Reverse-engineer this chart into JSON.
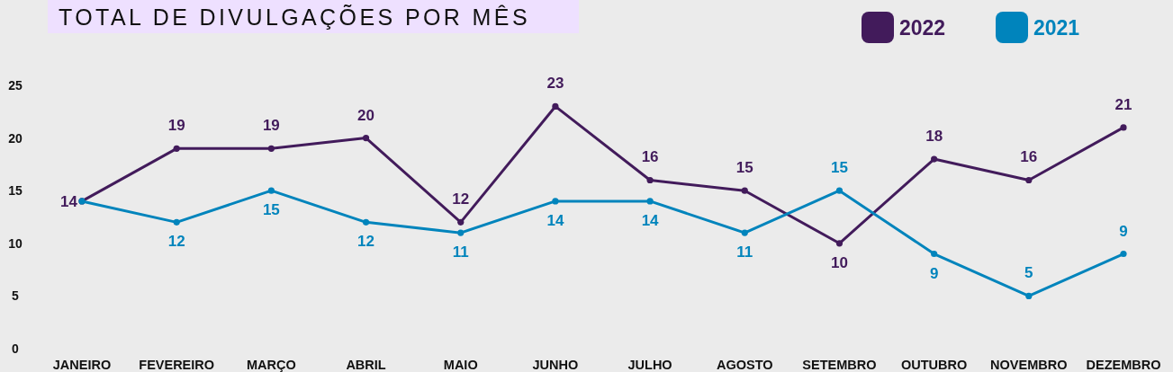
{
  "chart_data": {
    "type": "line",
    "title": "TOTAL DE DIVULGAÇÕES POR MÊS",
    "categories": [
      "JANEIRO",
      "FEVEREIRO",
      "MARÇO",
      "ABRIL",
      "MAIO",
      "JUNHO",
      "JULHO",
      "AGOSTO",
      "SETEMBRO",
      "OUTUBRO",
      "NOVEMBRO",
      "DEZEMBRO"
    ],
    "series": [
      {
        "name": "2022",
        "color": "#421b5b",
        "values": [
          14,
          19,
          19,
          20,
          12,
          23,
          16,
          15,
          10,
          18,
          16,
          21
        ],
        "value_labels": [
          "14",
          "19",
          "19",
          "20",
          "12",
          "23",
          "16",
          "15",
          "10",
          "18",
          "16",
          "21"
        ]
      },
      {
        "name": "2021",
        "color": "#0084bc",
        "values": [
          14,
          12,
          15,
          12,
          11,
          14,
          14,
          11,
          15,
          9,
          5,
          9
        ],
        "value_labels": [
          null,
          "12",
          "15",
          "12",
          "11",
          "14",
          "14",
          "11",
          "15",
          "9",
          "5",
          "9"
        ]
      }
    ],
    "ylim": [
      0,
      25
    ],
    "yticks": [
      0,
      5,
      10,
      15,
      20,
      25
    ],
    "legend": "top right",
    "marker": "circle",
    "line_style": "solid"
  }
}
